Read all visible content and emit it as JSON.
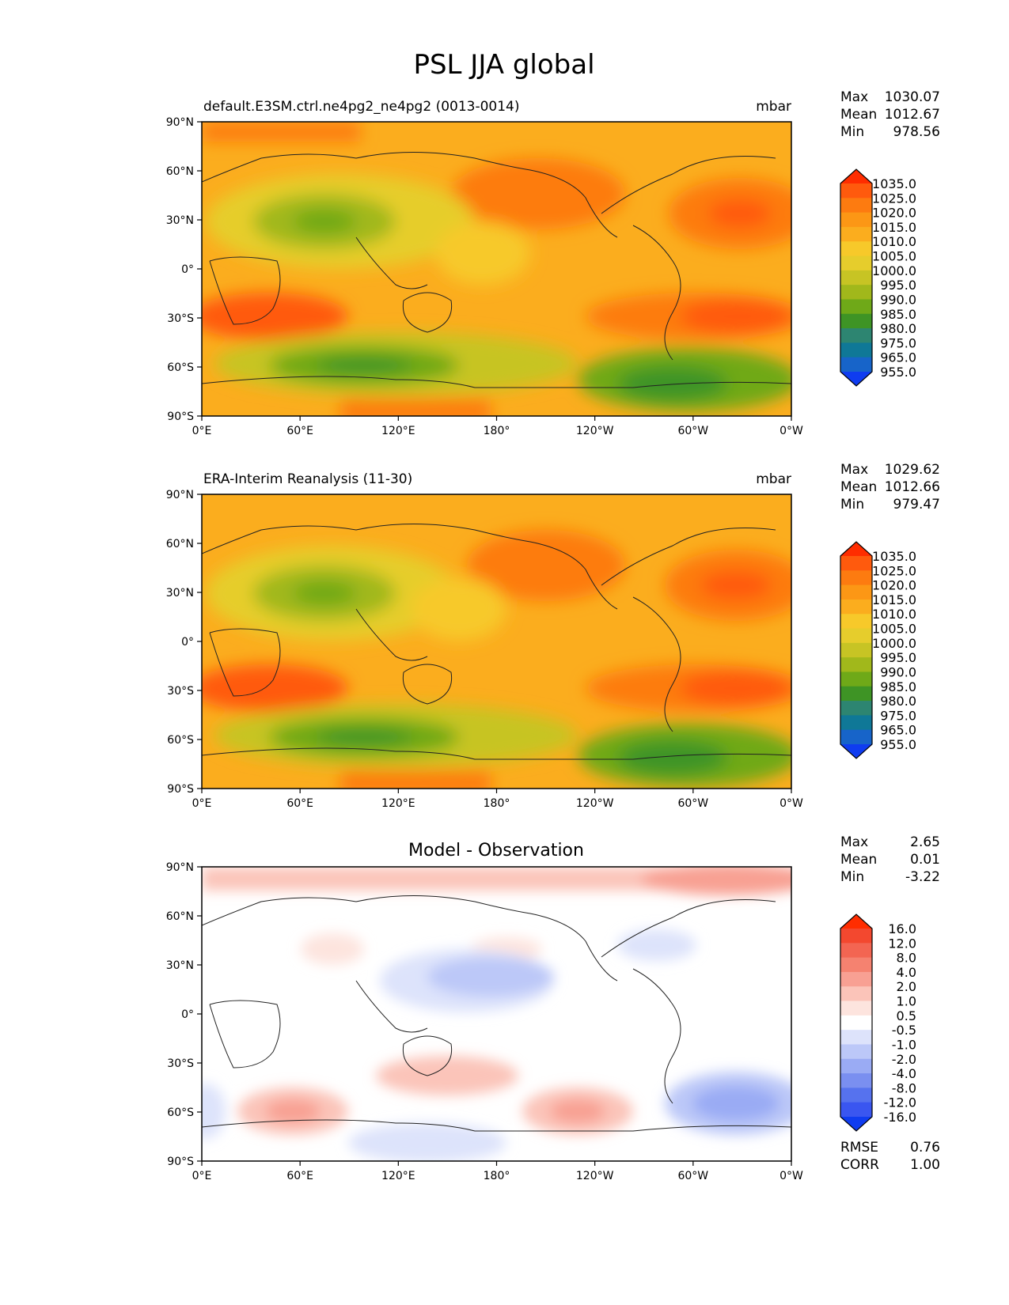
{
  "figure_title": "PSL JJA global",
  "chart_data": [
    {
      "type": "heatmap",
      "title_left": "default.E3SM.ctrl.ne4pg2_ne4pg2 (0013-0014)",
      "title_right": "mbar",
      "x_tick_labels": [
        "0°E",
        "60°E",
        "120°E",
        "180°",
        "120°W",
        "60°W",
        "0°W"
      ],
      "y_tick_labels": [
        "90°N",
        "60°N",
        "30°N",
        "0°",
        "30°S",
        "60°S",
        "90°S"
      ],
      "xlim": [
        0,
        360
      ],
      "ylim": [
        -90,
        90
      ],
      "stats": {
        "Max": "1030.07",
        "Mean": "1012.67",
        "Min": "978.56"
      },
      "colorbar_levels": [
        "1035.0",
        "1025.0",
        "1020.0",
        "1015.0",
        "1010.0",
        "1005.0",
        "1000.0",
        "995.0",
        "990.0",
        "985.0",
        "980.0",
        "975.0",
        "965.0",
        "955.0"
      ],
      "colorbar_colors": [
        "#ff2d00",
        "#ff5a0d",
        "#fd7b10",
        "#fc9715",
        "#fbad1e",
        "#f7c92a",
        "#e6cd2c",
        "#c7c424",
        "#a1b81b",
        "#6fa918",
        "#3e9425",
        "#2d8571",
        "#0f7897",
        "#1764c9",
        "#0f3cf0"
      ]
    },
    {
      "type": "heatmap",
      "title_left": "ERA-Interim Reanalysis (11-30)",
      "title_right": "mbar",
      "x_tick_labels": [
        "0°E",
        "60°E",
        "120°E",
        "180°",
        "120°W",
        "60°W",
        "0°W"
      ],
      "y_tick_labels": [
        "90°N",
        "60°N",
        "30°N",
        "0°",
        "30°S",
        "60°S",
        "90°S"
      ],
      "xlim": [
        0,
        360
      ],
      "ylim": [
        -90,
        90
      ],
      "stats": {
        "Max": "1029.62",
        "Mean": "1012.66",
        "Min": "979.47"
      },
      "colorbar_levels": [
        "1035.0",
        "1025.0",
        "1020.0",
        "1015.0",
        "1010.0",
        "1005.0",
        "1000.0",
        "995.0",
        "990.0",
        "985.0",
        "980.0",
        "975.0",
        "965.0",
        "955.0"
      ],
      "colorbar_colors": [
        "#ff2d00",
        "#ff5a0d",
        "#fd7b10",
        "#fc9715",
        "#fbad1e",
        "#f7c92a",
        "#e6cd2c",
        "#c7c424",
        "#a1b81b",
        "#6fa918",
        "#3e9425",
        "#2d8571",
        "#0f7897",
        "#1764c9",
        "#0f3cf0"
      ]
    },
    {
      "type": "heatmap",
      "title_center": "Model - Observation",
      "x_tick_labels": [
        "0°E",
        "60°E",
        "120°E",
        "180°",
        "120°W",
        "60°W",
        "0°W"
      ],
      "y_tick_labels": [
        "90°N",
        "60°N",
        "30°N",
        "0°",
        "30°S",
        "60°S",
        "90°S"
      ],
      "xlim": [
        0,
        360
      ],
      "ylim": [
        -90,
        90
      ],
      "stats": {
        "Max": "2.65",
        "Mean": "0.01",
        "Min": "-3.22"
      },
      "metrics": {
        "RMSE": "0.76",
        "CORR": "1.00"
      },
      "colorbar_levels": [
        "16.0",
        "12.0",
        "8.0",
        "4.0",
        "2.0",
        "1.0",
        "0.5",
        "-0.5",
        "-1.0",
        "-2.0",
        "-4.0",
        "-8.0",
        "-12.0",
        "-16.0"
      ],
      "colorbar_colors": [
        "#ff2d00",
        "#f3482f",
        "#f36552",
        "#f58270",
        "#f8a093",
        "#fbc4b9",
        "#fde4de",
        "#ffffff",
        "#dde3fb",
        "#bcc8f8",
        "#9aabf4",
        "#7a8ff0",
        "#5672ee",
        "#3a56f0",
        "#0f3cf0"
      ]
    }
  ]
}
